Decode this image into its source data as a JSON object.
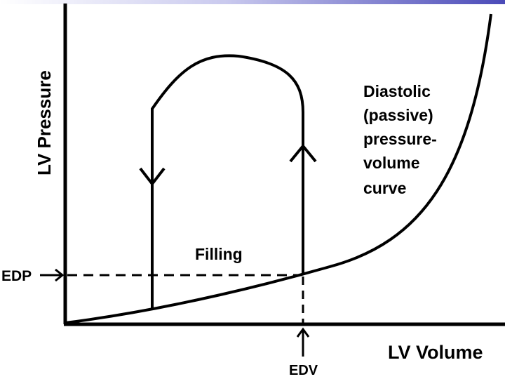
{
  "axes": {
    "y_label": "LV Pressure",
    "x_label": "LV Volume"
  },
  "markers": {
    "edp": "EDP",
    "edv": "EDV"
  },
  "annotations": {
    "filling": "Filling",
    "curve_label": [
      "Diastolic",
      "(passive)",
      "pressure-",
      "volume",
      "curve"
    ]
  },
  "colors": {
    "line": "#000000",
    "background": "#ffffff",
    "top_band_accent": "#4a4ab8"
  }
}
